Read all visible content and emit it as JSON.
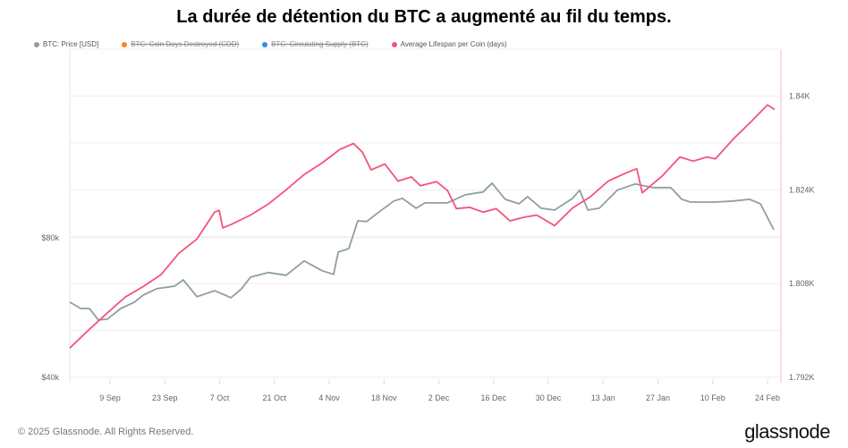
{
  "title": "La durée de détention du BTC a augmenté au fil du temps.",
  "footer": {
    "copyright": "© 2025 Glassnode. All Rights Reserved.",
    "logo": "glassnode"
  },
  "chart_data": {
    "type": "line",
    "title": "La durée de détention du BTC a augmenté au fil du temps.",
    "x_unit": "days since 9 Sep 2024",
    "xlim": [
      -10.3,
      171.2
    ],
    "x_ticks": [
      {
        "day": 0,
        "label": "9 Sep"
      },
      {
        "day": 14,
        "label": "23 Sep"
      },
      {
        "day": 28,
        "label": "7 Oct"
      },
      {
        "day": 42,
        "label": "21 Oct"
      },
      {
        "day": 56,
        "label": "4 Nov"
      },
      {
        "day": 70,
        "label": "18 Nov"
      },
      {
        "day": 84,
        "label": "2 Dec"
      },
      {
        "day": 98,
        "label": "16 Dec"
      },
      {
        "day": 112,
        "label": "30 Dec"
      },
      {
        "day": 126,
        "label": "13 Jan"
      },
      {
        "day": 140,
        "label": "27 Jan"
      },
      {
        "day": 154,
        "label": "10 Feb"
      },
      {
        "day": 168,
        "label": "24 Feb"
      }
    ],
    "y_left": {
      "scale": "log",
      "lim": [
        40,
        204
      ],
      "ticks": [
        {
          "value": 40,
          "label": "$40k"
        },
        {
          "value": 80,
          "label": "$80k"
        }
      ],
      "unit": "k USD"
    },
    "y_right": {
      "scale": "linear",
      "lim": [
        1792,
        1848
      ],
      "ticks": [
        {
          "value": 1792,
          "label": "1.792K"
        },
        {
          "value": 1808,
          "label": "1.808K"
        },
        {
          "value": 1824,
          "label": "1.824K"
        },
        {
          "value": 1840,
          "label": "1.84K"
        }
      ],
      "grid_step": 8
    },
    "legend": [
      {
        "name": "BTC: Price [USD]",
        "color": "#8f9ea2",
        "enabled": true
      },
      {
        "name": "BTC: Coin Days Destroyed (CDD)",
        "color": "#f7851f",
        "enabled": false
      },
      {
        "name": "BTC: Circulating Supply (BTC)",
        "color": "#2b8cf0",
        "enabled": false
      },
      {
        "name": "Average Lifespan per Coin (days)",
        "color": "#f2547a",
        "enabled": true
      }
    ],
    "series": [
      {
        "name": "BTC: Price [USD]",
        "axis": "left",
        "color": "#8f9ea2",
        "points": [
          [
            -10.3,
            58.1
          ],
          [
            -7.5,
            56.3
          ],
          [
            -5.3,
            56.3
          ],
          [
            -3.0,
            53.2
          ],
          [
            -0.7,
            53.4
          ],
          [
            2.7,
            56.3
          ],
          [
            6.2,
            58.1
          ],
          [
            8.5,
            60.2
          ],
          [
            11.9,
            62.1
          ],
          [
            16.5,
            62.9
          ],
          [
            18.7,
            64.9
          ],
          [
            22.2,
            59.7
          ],
          [
            26.7,
            61.5
          ],
          [
            30.9,
            59.4
          ],
          [
            33.6,
            62.1
          ],
          [
            35.9,
            65.8
          ],
          [
            40.5,
            67.3
          ],
          [
            45.0,
            66.4
          ],
          [
            49.6,
            71.3
          ],
          [
            54.2,
            67.9
          ],
          [
            57.1,
            66.7
          ],
          [
            58.3,
            74.5
          ],
          [
            61.0,
            75.8
          ],
          [
            63.3,
            87.0
          ],
          [
            65.6,
            86.7
          ],
          [
            67.9,
            89.8
          ],
          [
            72.5,
            96.0
          ],
          [
            74.7,
            97.3
          ],
          [
            78.2,
            92.6
          ],
          [
            80.5,
            95.1
          ],
          [
            86.2,
            95.1
          ],
          [
            90.7,
            99.0
          ],
          [
            95.3,
            100.4
          ],
          [
            97.6,
            104.9
          ],
          [
            101.0,
            96.8
          ],
          [
            104.5,
            94.7
          ],
          [
            106.7,
            98.1
          ],
          [
            110.2,
            92.6
          ],
          [
            113.6,
            91.8
          ],
          [
            118.2,
            97.3
          ],
          [
            120.0,
            101.3
          ],
          [
            122.1,
            91.8
          ],
          [
            125.0,
            92.6
          ],
          [
            129.6,
            101.3
          ],
          [
            134.2,
            104.5
          ],
          [
            138.7,
            102.6
          ],
          [
            143.3,
            102.6
          ],
          [
            146.1,
            96.8
          ],
          [
            148.3,
            95.5
          ],
          [
            154.7,
            95.5
          ],
          [
            159.3,
            96.0
          ],
          [
            163.4,
            96.8
          ],
          [
            166.2,
            94.7
          ],
          [
            169.6,
            83.3
          ]
        ]
      },
      {
        "name": "Average Lifespan per Coin (days)",
        "axis": "right",
        "color": "#f2547a",
        "points": [
          [
            -10.3,
            1797.0
          ],
          [
            -5.3,
            1800.2
          ],
          [
            -0.7,
            1803.0
          ],
          [
            3.9,
            1805.7
          ],
          [
            8.5,
            1807.5
          ],
          [
            13.0,
            1809.5
          ],
          [
            17.6,
            1813.2
          ],
          [
            22.2,
            1815.6
          ],
          [
            26.7,
            1820.2
          ],
          [
            27.9,
            1820.5
          ],
          [
            28.8,
            1817.5
          ],
          [
            31.3,
            1818.2
          ],
          [
            35.9,
            1819.7
          ],
          [
            40.5,
            1821.6
          ],
          [
            45.0,
            1824.0
          ],
          [
            49.6,
            1826.6
          ],
          [
            54.2,
            1828.6
          ],
          [
            58.7,
            1830.9
          ],
          [
            62.2,
            1831.9
          ],
          [
            64.5,
            1830.4
          ],
          [
            66.7,
            1827.4
          ],
          [
            70.2,
            1828.4
          ],
          [
            73.6,
            1825.5
          ],
          [
            77.0,
            1826.2
          ],
          [
            79.3,
            1824.7
          ],
          [
            83.4,
            1825.4
          ],
          [
            86.2,
            1823.9
          ],
          [
            88.5,
            1820.8
          ],
          [
            91.9,
            1821.0
          ],
          [
            95.3,
            1820.2
          ],
          [
            98.7,
            1820.8
          ],
          [
            102.2,
            1818.7
          ],
          [
            105.6,
            1819.3
          ],
          [
            109.0,
            1819.7
          ],
          [
            113.6,
            1817.9
          ],
          [
            118.2,
            1820.9
          ],
          [
            122.7,
            1822.8
          ],
          [
            127.3,
            1825.5
          ],
          [
            131.9,
            1826.9
          ],
          [
            134.6,
            1827.6
          ],
          [
            136.0,
            1823.5
          ],
          [
            141.0,
            1826.3
          ],
          [
            145.6,
            1829.6
          ],
          [
            149.0,
            1828.9
          ],
          [
            152.5,
            1829.6
          ],
          [
            154.7,
            1829.3
          ],
          [
            159.3,
            1832.7
          ],
          [
            163.9,
            1835.7
          ],
          [
            168.0,
            1838.5
          ],
          [
            169.8,
            1837.7
          ]
        ]
      }
    ]
  }
}
